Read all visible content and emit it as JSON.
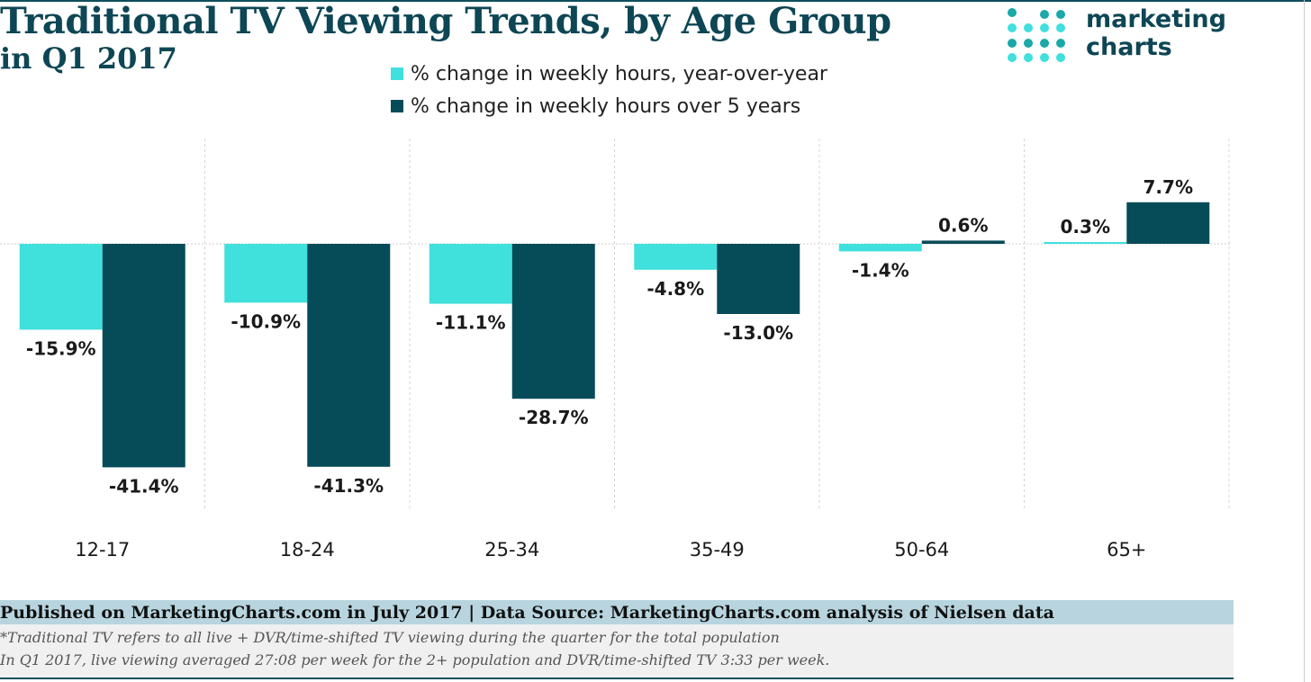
{
  "header": {
    "title": "Traditional TV Viewing Trends, by Age Group",
    "subtitle": "in Q1 2017"
  },
  "logo": {
    "line1": "marketing",
    "line2": "charts"
  },
  "colors": {
    "yoy": "#40e0dc",
    "five_year": "#064b58",
    "title": "#0d4654",
    "footer_bar": "#b8d5df"
  },
  "chart_data": {
    "type": "bar",
    "categories": [
      "12-17",
      "18-24",
      "25-34",
      "35-49",
      "50-64",
      "65+"
    ],
    "series": [
      {
        "name": "% change in weekly hours, year-over-year",
        "values": [
          -15.9,
          -10.9,
          -11.1,
          -4.8,
          -1.4,
          0.3
        ],
        "labels": [
          "-15.9%",
          "-10.9%",
          "-11.1%",
          "-4.8%",
          "-1.4%",
          "0.3%"
        ]
      },
      {
        "name": "% change in weekly hours over 5 years",
        "values": [
          -41.4,
          -41.3,
          -28.7,
          -13.0,
          0.6,
          7.7
        ],
        "labels": [
          "-41.4%",
          "-41.3%",
          "-28.7%",
          "-13.0%",
          "0.6%",
          "7.7%"
        ]
      }
    ],
    "ylim": [
      -49,
      20
    ],
    "grid": "vertical dashed separators",
    "legend": "top-center"
  },
  "footer": {
    "source": "Published on MarketingCharts.com in July 2017 | Data Source: MarketingCharts.com analysis of Nielsen data",
    "note1": "*Traditional TV refers to all live + DVR/time-shifted TV viewing during the quarter for the total population",
    "note2": " In Q1 2017, live viewing averaged 27:08 per week for the 2+ population and DVR/time-shifted TV 3:33 per week."
  }
}
